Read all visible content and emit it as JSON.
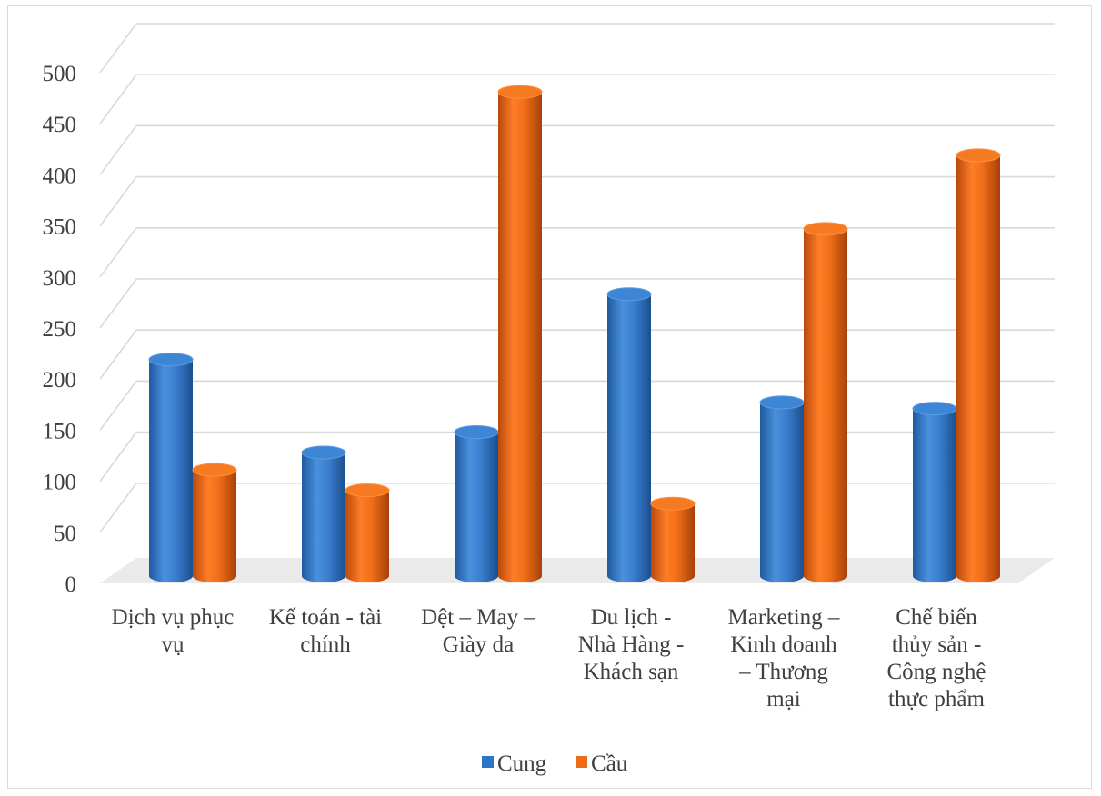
{
  "chart_data": {
    "type": "bar",
    "title": "",
    "xlabel": "",
    "ylabel": "",
    "ylim": [
      0,
      500
    ],
    "yticks": [
      "0",
      "50",
      "100",
      "150",
      "200",
      "250",
      "300",
      "350",
      "400",
      "450",
      "500"
    ],
    "grid": true,
    "legend_position": "bottom",
    "categories": [
      [
        "Dịch vụ phục",
        "vụ"
      ],
      [
        "Kế toán - tài",
        "chính"
      ],
      [
        "Dệt – May –",
        "Giày da"
      ],
      [
        "Du lịch -",
        "Nhà Hàng -",
        "Khách sạn"
      ],
      [
        "Marketing –",
        "Kinh doanh",
        "– Thương",
        "mại"
      ],
      [
        "Chế biến",
        "thủy sản -",
        "Công nghệ",
        "thực phẩm"
      ]
    ],
    "series": [
      {
        "name": "Cung",
        "color": "#2e75c6",
        "values": [
          212,
          121,
          141,
          276,
          170,
          164
        ]
      },
      {
        "name": "Cầu",
        "color": "#ec6b16",
        "values": [
          104,
          84,
          474,
          71,
          340,
          412
        ]
      }
    ]
  }
}
